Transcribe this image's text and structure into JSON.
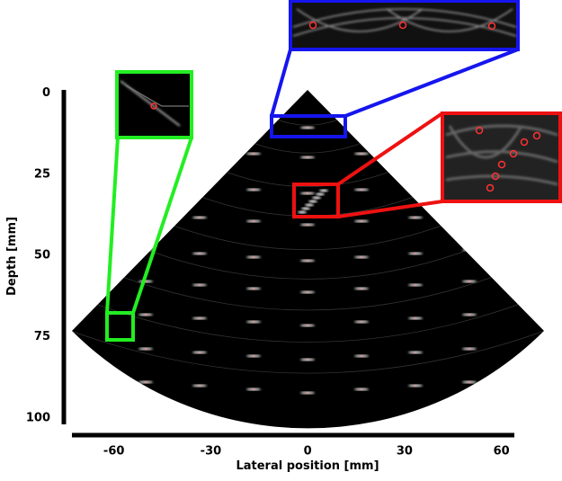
{
  "chart_data": {
    "type": "image",
    "xlabel": "Lateral position [mm]",
    "ylabel": "Depth [mm]",
    "xlim": [
      -73,
      64
    ],
    "xticks": [
      -60,
      -30,
      0,
      30,
      60
    ],
    "ylim": [
      102,
      -1
    ],
    "yticks": [
      0,
      25,
      50,
      75,
      100
    ]
  }
}
